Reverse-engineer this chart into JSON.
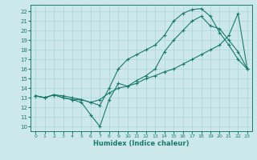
{
  "xlabel": "Humidex (Indice chaleur)",
  "bg_color": "#cce8ea",
  "grid_color": "#b0d8dc",
  "line_color": "#1a7a6e",
  "xlim": [
    -0.5,
    23.5
  ],
  "ylim": [
    9.5,
    22.7
  ],
  "xticks": [
    0,
    1,
    2,
    3,
    4,
    5,
    6,
    7,
    8,
    9,
    10,
    11,
    12,
    13,
    14,
    15,
    16,
    17,
    18,
    19,
    20,
    21,
    22,
    23
  ],
  "yticks": [
    10,
    11,
    12,
    13,
    14,
    15,
    16,
    17,
    18,
    19,
    20,
    21,
    22
  ],
  "curve_mid_x": [
    0,
    1,
    2,
    3,
    4,
    5,
    6,
    7,
    8,
    9,
    10,
    11,
    12,
    13,
    14,
    15,
    16,
    17,
    18,
    19,
    20,
    21,
    22,
    23
  ],
  "curve_mid_y": [
    13.2,
    13.0,
    13.3,
    13.0,
    12.8,
    12.5,
    11.2,
    10.0,
    12.8,
    14.5,
    14.2,
    14.8,
    15.3,
    16.0,
    17.8,
    19.0,
    20.0,
    21.0,
    21.5,
    20.5,
    20.2,
    19.0,
    17.8,
    16.0
  ],
  "curve_high_x": [
    0,
    1,
    2,
    3,
    4,
    5,
    6,
    7,
    8,
    9,
    10,
    11,
    12,
    13,
    14,
    15,
    16,
    17,
    18,
    19,
    20,
    21,
    22,
    23
  ],
  "curve_high_y": [
    13.2,
    13.0,
    13.3,
    13.0,
    12.8,
    12.8,
    12.5,
    12.2,
    14.0,
    16.0,
    17.0,
    17.5,
    18.0,
    18.5,
    19.5,
    21.0,
    21.8,
    22.2,
    22.3,
    21.5,
    19.8,
    18.5,
    17.0,
    16.0
  ],
  "curve_low_x": [
    0,
    1,
    2,
    3,
    4,
    5,
    6,
    7,
    8,
    9,
    10,
    11,
    12,
    13,
    14,
    15,
    16,
    17,
    18,
    19,
    20,
    21,
    22,
    23
  ],
  "curve_low_y": [
    13.2,
    13.0,
    13.3,
    13.2,
    13.0,
    12.8,
    12.5,
    12.8,
    13.5,
    14.0,
    14.2,
    14.5,
    15.0,
    15.3,
    15.7,
    16.0,
    16.5,
    17.0,
    17.5,
    18.0,
    18.5,
    19.5,
    21.8,
    16.0
  ]
}
